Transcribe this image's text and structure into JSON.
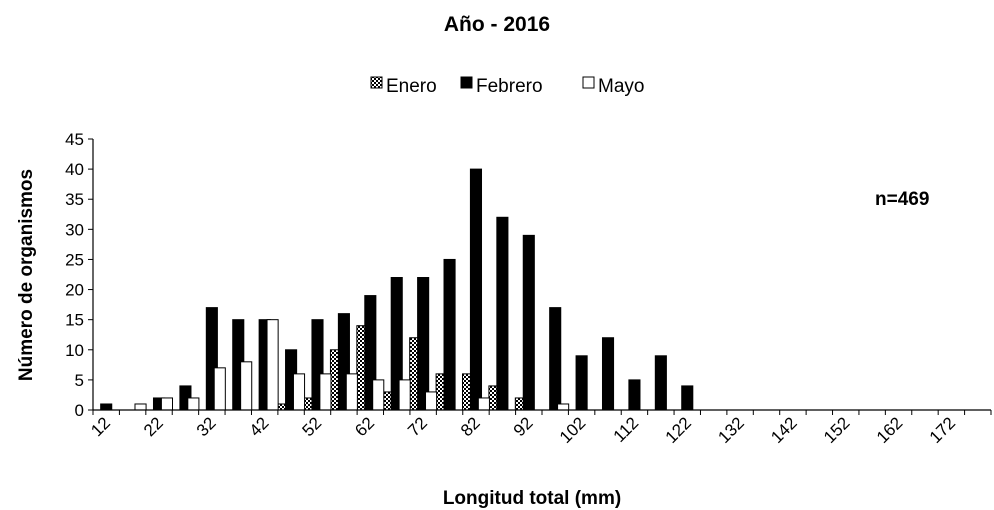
{
  "chart_data": {
    "type": "bar",
    "title": "Año - 2016",
    "xlabel": "Longitud total (mm)",
    "ylabel": "Número de organismos",
    "annotation": "n=469",
    "ylim": [
      0,
      45
    ],
    "yticks": [
      "0",
      "5",
      "10",
      "15",
      "20",
      "25",
      "30",
      "35",
      "40",
      "45"
    ],
    "categories": [
      12,
      17,
      22,
      27,
      32,
      37,
      42,
      47,
      52,
      57,
      62,
      67,
      72,
      77,
      82,
      87,
      92,
      97,
      102,
      107,
      112,
      117,
      122,
      127,
      132,
      137,
      142,
      147,
      152,
      157,
      162,
      167,
      172,
      177
    ],
    "x_tick_labels": [
      "12",
      "22",
      "32",
      "42",
      "52",
      "62",
      "72",
      "82",
      "92",
      "102",
      "112",
      "122",
      "132",
      "142",
      "152",
      "162",
      "172"
    ],
    "legend_position": "top",
    "series": [
      {
        "name": "Enero",
        "pattern": "checkered",
        "values": [
          0,
          0,
          0,
          0,
          0,
          0,
          0,
          1,
          2,
          10,
          14,
          3,
          12,
          6,
          6,
          4,
          2,
          0,
          0,
          0,
          0,
          0,
          0,
          0,
          0,
          0,
          0,
          0,
          0,
          0,
          0,
          0,
          0,
          0
        ]
      },
      {
        "name": "Febrero",
        "pattern": "solid",
        "color": "#000000",
        "values": [
          1,
          0,
          2,
          4,
          17,
          15,
          15,
          10,
          15,
          16,
          19,
          22,
          22,
          25,
          40,
          32,
          29,
          17,
          9,
          12,
          5,
          9,
          4,
          0,
          0,
          0,
          0,
          0,
          0,
          0,
          0,
          0,
          0,
          0
        ]
      },
      {
        "name": "Mayo",
        "pattern": "open",
        "color": "#ffffff",
        "values": [
          0,
          1,
          2,
          2,
          7,
          8,
          15,
          6,
          6,
          6,
          5,
          5,
          3,
          0,
          2,
          0,
          0,
          1,
          0,
          0,
          0,
          0,
          0,
          0,
          0,
          0,
          0,
          0,
          0,
          0,
          0,
          0,
          0,
          0
        ]
      }
    ]
  }
}
